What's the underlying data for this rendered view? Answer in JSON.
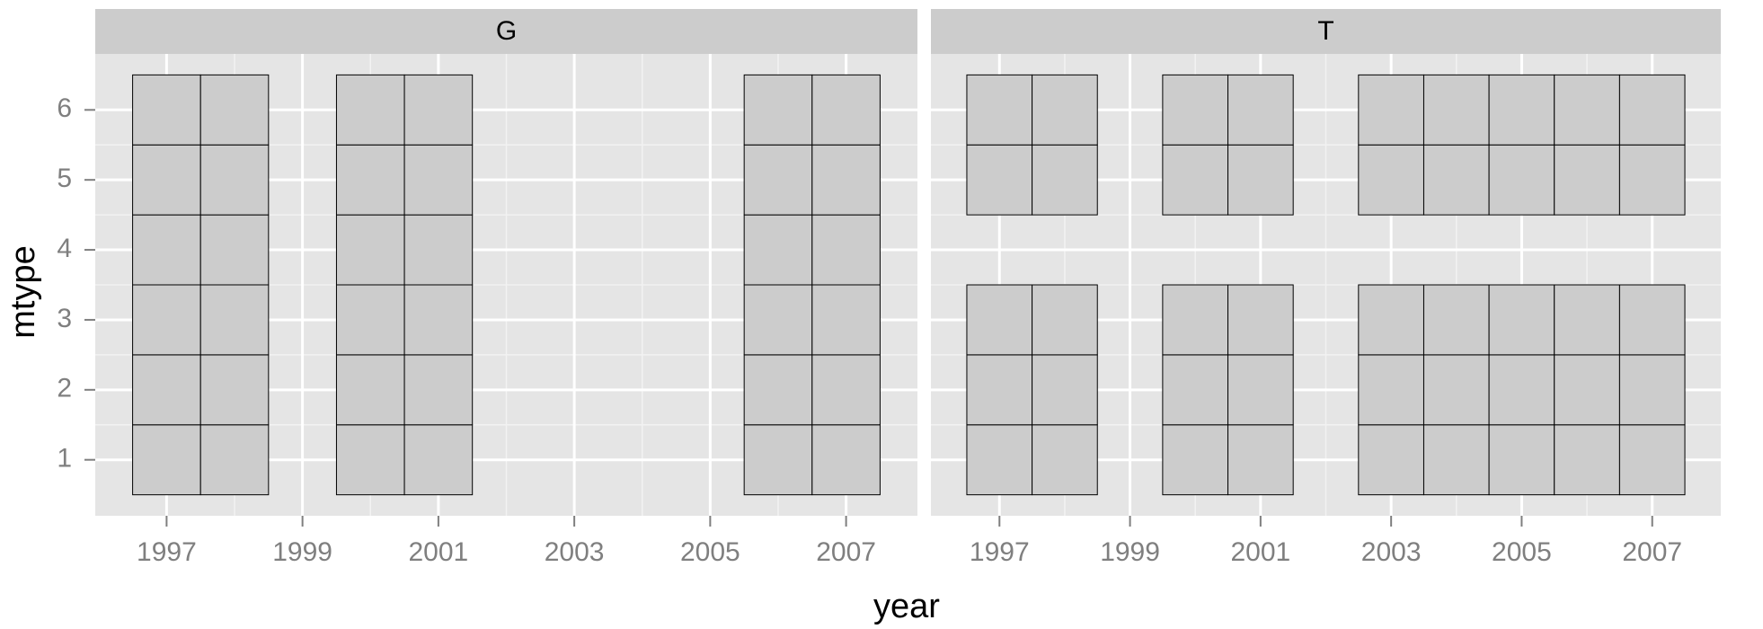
{
  "chart_data": {
    "type": "tile",
    "xlabel": "year",
    "ylabel": "mtype",
    "ylim": [
      0.2,
      6.8
    ],
    "yticks": [
      1,
      2,
      3,
      4,
      5,
      6
    ],
    "grid": true,
    "tile_color": "#cccccc",
    "panel_color": "#e5e5e5",
    "facets": [
      {
        "title": "G",
        "xlim": [
          1995.95,
          2008.05
        ],
        "xticks": [
          1997,
          1999,
          2001,
          2003,
          2005,
          2007
        ],
        "x": [
          1997,
          1997,
          1997,
          1997,
          1997,
          1997,
          1998,
          1998,
          1998,
          1998,
          1998,
          1998,
          2000,
          2000,
          2000,
          2000,
          2000,
          2000,
          2001,
          2001,
          2001,
          2001,
          2001,
          2001,
          2006,
          2006,
          2006,
          2006,
          2006,
          2006,
          2007,
          2007,
          2007,
          2007,
          2007,
          2007
        ],
        "y": [
          1,
          2,
          3,
          4,
          5,
          6,
          1,
          2,
          3,
          4,
          5,
          6,
          1,
          2,
          3,
          4,
          5,
          6,
          1,
          2,
          3,
          4,
          5,
          6,
          1,
          2,
          3,
          4,
          5,
          6,
          1,
          2,
          3,
          4,
          5,
          6
        ]
      },
      {
        "title": "T",
        "xlim": [
          1995.95,
          2008.05
        ],
        "xticks": [
          1997,
          1999,
          2001,
          2003,
          2005,
          2007
        ],
        "x": [
          1997,
          1997,
          1997,
          1997,
          1997,
          1998,
          1998,
          1998,
          1998,
          1998,
          2000,
          2000,
          2000,
          2000,
          2000,
          2001,
          2001,
          2001,
          2001,
          2001,
          2003,
          2003,
          2003,
          2003,
          2003,
          2004,
          2004,
          2004,
          2004,
          2004,
          2005,
          2005,
          2005,
          2005,
          2005,
          2006,
          2006,
          2006,
          2006,
          2006,
          2007,
          2007,
          2007,
          2007,
          2007
        ],
        "y": [
          1,
          2,
          3,
          5,
          6,
          1,
          2,
          3,
          5,
          6,
          1,
          2,
          3,
          5,
          6,
          1,
          2,
          3,
          5,
          6,
          1,
          2,
          3,
          5,
          6,
          1,
          2,
          3,
          5,
          6,
          1,
          2,
          3,
          5,
          6,
          1,
          2,
          3,
          5,
          6,
          1,
          2,
          3,
          5,
          6
        ]
      }
    ]
  }
}
